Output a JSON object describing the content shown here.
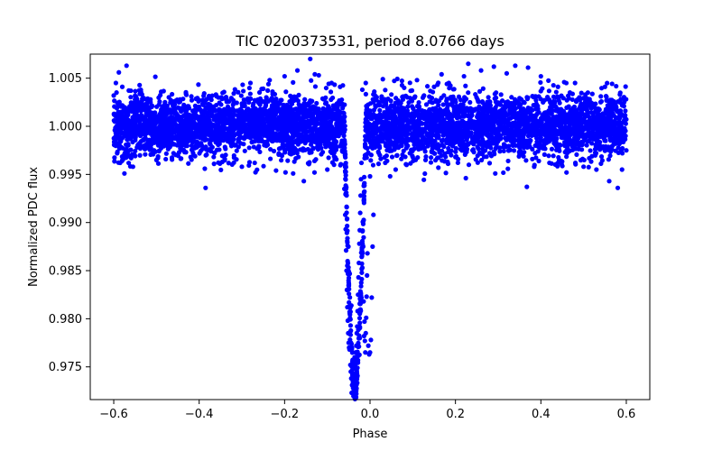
{
  "chart_data": {
    "type": "scatter",
    "title": "TIC 0200373531, period 8.0766 days",
    "xlabel": "Phase",
    "ylabel": "Normalized PDC flux",
    "xlim": [
      -0.655,
      0.655
    ],
    "ylim": [
      0.9716,
      1.0075
    ],
    "x_ticks": [
      -0.6,
      -0.4,
      -0.2,
      0.0,
      0.2,
      0.4,
      0.6
    ],
    "x_tick_labels": [
      "−0.6",
      "−0.4",
      "−0.2",
      "0.0",
      "0.2",
      "0.4",
      "0.6"
    ],
    "y_ticks": [
      0.975,
      0.98,
      0.985,
      0.99,
      0.995,
      1.0,
      1.005
    ],
    "y_tick_labels": [
      "0.975",
      "0.980",
      "0.985",
      "0.990",
      "0.995",
      "1.000",
      "1.005"
    ],
    "grid": false,
    "legend": "none",
    "series": [
      {
        "name": "PDC flux",
        "color": "#0000ff",
        "baseline_flux": 1.0,
        "baseline_scatter": 0.0016,
        "phase_range": [
          -0.6,
          0.6
        ],
        "transit": {
          "center_phase": -0.035,
          "ingress_phase": -0.06,
          "egress_phase": -0.01,
          "min_flux": 0.9723
        },
        "points": [
          [
            -0.6,
            1.0032
          ],
          [
            -0.598,
            0.9988
          ],
          [
            -0.595,
            1.0045
          ],
          [
            -0.592,
            0.9972
          ],
          [
            -0.588,
            1.0056
          ],
          [
            -0.585,
            0.9962
          ],
          [
            -0.58,
            1.0041
          ],
          [
            -0.575,
            0.9951
          ],
          [
            -0.57,
            1.0063
          ],
          [
            -0.565,
            0.9969
          ],
          [
            -0.56,
            1.0037
          ],
          [
            -0.555,
            0.9958
          ],
          [
            -0.55,
            1.0028
          ],
          [
            -0.53,
            0.9978
          ],
          [
            -0.51,
            1.0021
          ],
          [
            -0.5,
            0.9965
          ],
          [
            -0.48,
            1.0025
          ],
          [
            -0.46,
            0.9972
          ],
          [
            -0.44,
            1.0018
          ],
          [
            -0.42,
            0.9968
          ],
          [
            -0.4,
            1.002
          ],
          [
            -0.385,
            0.9936
          ],
          [
            -0.38,
            0.9975
          ],
          [
            -0.36,
            1.0022
          ],
          [
            -0.34,
            0.9966
          ],
          [
            -0.32,
            1.0027
          ],
          [
            -0.3,
            0.9958
          ],
          [
            -0.28,
            1.0045
          ],
          [
            -0.27,
            0.9962
          ],
          [
            -0.25,
            1.0039
          ],
          [
            -0.235,
            1.0048
          ],
          [
            -0.22,
            0.9954
          ],
          [
            -0.2,
            1.0052
          ],
          [
            -0.18,
            0.9951
          ],
          [
            -0.17,
            1.0058
          ],
          [
            -0.155,
            0.9943
          ],
          [
            -0.14,
            1.007
          ],
          [
            -0.13,
            0.9952
          ],
          [
            -0.12,
            1.0053
          ],
          [
            -0.1,
            0.9955
          ],
          [
            -0.09,
            1.0045
          ],
          [
            -0.08,
            0.9966
          ],
          [
            -0.07,
            1.0041
          ],
          [
            -0.065,
            0.9975
          ],
          [
            -0.062,
            0.9995
          ],
          [
            -0.06,
            0.9935
          ],
          [
            -0.058,
            0.9908
          ],
          [
            -0.057,
            0.9893
          ],
          [
            -0.056,
            0.9871
          ],
          [
            -0.055,
            0.985
          ],
          [
            -0.054,
            0.983
          ],
          [
            -0.053,
            0.9812
          ],
          [
            -0.052,
            0.9798
          ],
          [
            -0.051,
            0.9785
          ],
          [
            -0.05,
            0.9775
          ],
          [
            -0.049,
            0.977
          ],
          [
            -0.048,
            0.9768
          ],
          [
            -0.046,
            0.9752
          ],
          [
            -0.045,
            0.9745
          ],
          [
            -0.044,
            0.9738
          ],
          [
            -0.043,
            0.9723
          ],
          [
            -0.042,
            0.9731
          ],
          [
            -0.041,
            0.9742
          ],
          [
            -0.04,
            0.9735
          ],
          [
            -0.039,
            0.9748
          ],
          [
            -0.038,
            0.9742
          ],
          [
            -0.037,
            0.9755
          ],
          [
            -0.036,
            0.976
          ],
          [
            -0.035,
            0.9752
          ],
          [
            -0.034,
            0.9765
          ],
          [
            -0.033,
            0.9758
          ],
          [
            -0.032,
            0.9772
          ],
          [
            -0.031,
            0.9785
          ],
          [
            -0.03,
            0.9792
          ],
          [
            -0.029,
            0.9808
          ],
          [
            -0.028,
            0.9825
          ],
          [
            -0.027,
            0.9843
          ],
          [
            -0.026,
            0.9858
          ],
          [
            -0.025,
            0.9878
          ],
          [
            -0.024,
            0.9892
          ],
          [
            -0.023,
            0.991
          ],
          [
            -0.022,
            0.9928
          ],
          [
            -0.021,
            0.9945
          ],
          [
            -0.02,
            0.9962
          ],
          [
            -0.018,
            0.9853
          ],
          [
            -0.016,
            0.9875
          ],
          [
            -0.015,
            0.9818
          ],
          [
            -0.014,
            0.9782
          ],
          [
            -0.013,
            0.9797
          ],
          [
            -0.012,
            0.9777
          ],
          [
            -0.011,
            0.9765
          ],
          [
            -0.01,
            0.9785
          ],
          [
            -0.009,
            0.9801
          ],
          [
            -0.008,
            0.9823
          ],
          [
            -0.007,
            0.9845
          ],
          [
            -0.006,
            0.9868
          ],
          [
            -0.004,
            0.9772
          ],
          [
            -0.002,
            0.9763
          ],
          [
            0.0,
            0.9765
          ],
          [
            0.002,
            0.9778
          ],
          [
            0.004,
            0.9822
          ],
          [
            0.006,
            0.9875
          ],
          [
            0.008,
            0.9908
          ],
          [
            -0.018,
            1.0038
          ],
          [
            -0.01,
            1.0045
          ],
          [
            0.0,
            0.9948
          ],
          [
            0.01,
            1.0036
          ],
          [
            0.02,
            0.9961
          ],
          [
            0.03,
            1.0049
          ],
          [
            0.04,
            0.9964
          ],
          [
            0.05,
            1.0033
          ],
          [
            0.06,
            0.9955
          ],
          [
            0.08,
            1.004
          ],
          [
            0.1,
            0.9968
          ],
          [
            0.11,
            1.0048
          ],
          [
            0.13,
            0.9965
          ],
          [
            0.15,
            1.0041
          ],
          [
            0.16,
            0.9957
          ],
          [
            0.18,
            1.0044
          ],
          [
            0.2,
            0.9968
          ],
          [
            0.22,
            1.0052
          ],
          [
            0.23,
            1.0065
          ],
          [
            0.24,
            0.9975
          ],
          [
            0.26,
            1.0058
          ],
          [
            0.28,
            0.9972
          ],
          [
            0.29,
            1.0062
          ],
          [
            0.3,
            0.9985
          ],
          [
            0.32,
            1.0055
          ],
          [
            0.34,
            1.0063
          ],
          [
            0.35,
            0.9978
          ],
          [
            0.37,
            1.0061
          ],
          [
            0.38,
            0.9966
          ],
          [
            0.4,
            1.0052
          ],
          [
            0.42,
            0.9962
          ],
          [
            0.44,
            1.0041
          ],
          [
            0.46,
            0.9952
          ],
          [
            0.48,
            1.0045
          ],
          [
            0.5,
            0.9958
          ],
          [
            0.51,
            1.0035
          ],
          [
            0.53,
            0.9955
          ],
          [
            0.55,
            1.0041
          ],
          [
            0.56,
            0.9943
          ],
          [
            0.575,
            1.0022
          ],
          [
            0.58,
            0.9936
          ],
          [
            0.585,
            1.0033
          ],
          [
            0.59,
            0.9955
          ],
          [
            0.595,
            1.0025
          ],
          [
            0.6,
            0.9975
          ]
        ]
      }
    ]
  }
}
